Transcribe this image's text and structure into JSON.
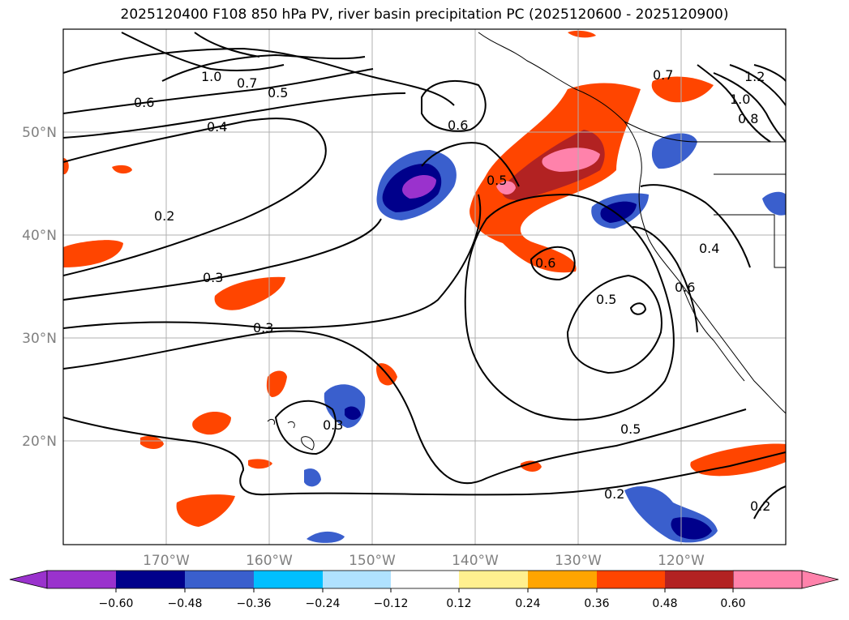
{
  "title": "2025120400 F108 850 hPa PV, river basin precipitation PC (2025120600 - 2025120900)",
  "lat_labels": [
    "50°N",
    "40°N",
    "30°N",
    "20°N"
  ],
  "lon_labels": [
    "170°W",
    "160°W",
    "150°W",
    "140°W",
    "130°W",
    "120°W"
  ],
  "colorbar": {
    "tick_labels": [
      "−0.60",
      "−0.48",
      "−0.36",
      "−0.24",
      "−0.12",
      "0.12",
      "0.24",
      "0.36",
      "0.48",
      "0.60"
    ],
    "colors": [
      "#9a32cd",
      "#00008b",
      "#3a5fcd",
      "#00bfff",
      "#b0e2ff",
      "#ffffff",
      "#fff08f",
      "#ffa500",
      "#ff4500",
      "#b22222",
      "#ff82ab"
    ]
  },
  "contour_labels": [
    "1.0",
    "0.7",
    "0.5",
    "0.6",
    "0.4",
    "0.2",
    "0.3",
    "0.3",
    "0.6",
    "0.5",
    "0.6",
    "0.5",
    "0.6",
    "0.4",
    "0.3",
    "0.5",
    "0.2",
    "0.2",
    "1.0",
    "0.8",
    "1.2",
    "0.7"
  ]
}
